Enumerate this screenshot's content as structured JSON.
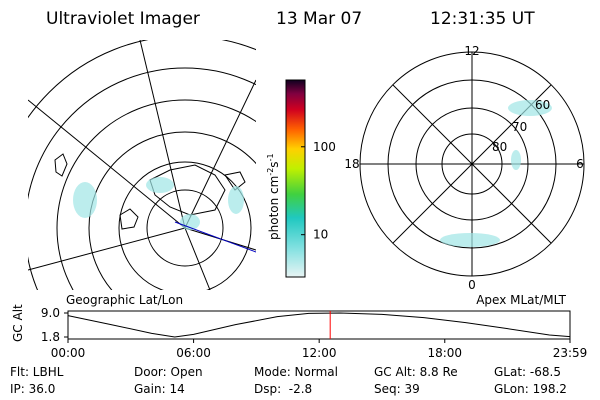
{
  "header": {
    "title": "Ultraviolet Imager",
    "date": "13 Mar 07",
    "time": "12:31:35 UT"
  },
  "left_map": {
    "label": "Geographic Lat/Lon"
  },
  "colorbar": {
    "label": "photon cm",
    "exp1": "-2",
    "unit2": "s",
    "exp2": "-1",
    "scale": "log",
    "range": [
      3.3,
      575
    ],
    "ticks": [
      10,
      100
    ]
  },
  "right_map": {
    "label": "Apex MLat/MLT",
    "mlt_labels": {
      "top": "12",
      "left": "18",
      "right": "6",
      "bottom": "0"
    },
    "mlat_labels": [
      "60",
      "70",
      "80"
    ]
  },
  "altitude_plot": {
    "ylabel": "GC Alt",
    "ylim": [
      1.8,
      9.0
    ],
    "yticks": [
      {
        "value": 9.0,
        "label": "9.0"
      },
      {
        "value": 1.8,
        "label": "1.8"
      }
    ],
    "xlim": [
      0,
      23.983
    ],
    "xticks": [
      {
        "value": 0,
        "label": "00:00"
      },
      {
        "value": 6,
        "label": "06:00"
      },
      {
        "value": 12,
        "label": "12:00"
      },
      {
        "value": 18,
        "label": "18:00"
      },
      {
        "value": 23.983,
        "label": "23:59"
      }
    ],
    "x": [
      0,
      2,
      4,
      5.1,
      6,
      8,
      10,
      11.5,
      13,
      15,
      17,
      19,
      21,
      23,
      23.983
    ],
    "values": [
      8.2,
      5.6,
      2.9,
      1.8,
      2.6,
      5.5,
      7.9,
      8.9,
      9.0,
      8.6,
      7.6,
      6.1,
      4.3,
      2.4,
      1.9
    ],
    "current_time": 12.526,
    "current_color": "#ff0000"
  },
  "footer": {
    "col1": [
      "Flt: LBHL",
      "IP: 36.0"
    ],
    "col2": [
      "Door: Open",
      "Gain: 14"
    ],
    "col3": [
      "Mode: Normal",
      "Dsp:  -2.8"
    ],
    "col4": [
      "GC Alt: 8.8 Re",
      "Seq: 39"
    ],
    "col5": [
      "GLat: -68.5",
      "GLon: 198.2"
    ]
  }
}
